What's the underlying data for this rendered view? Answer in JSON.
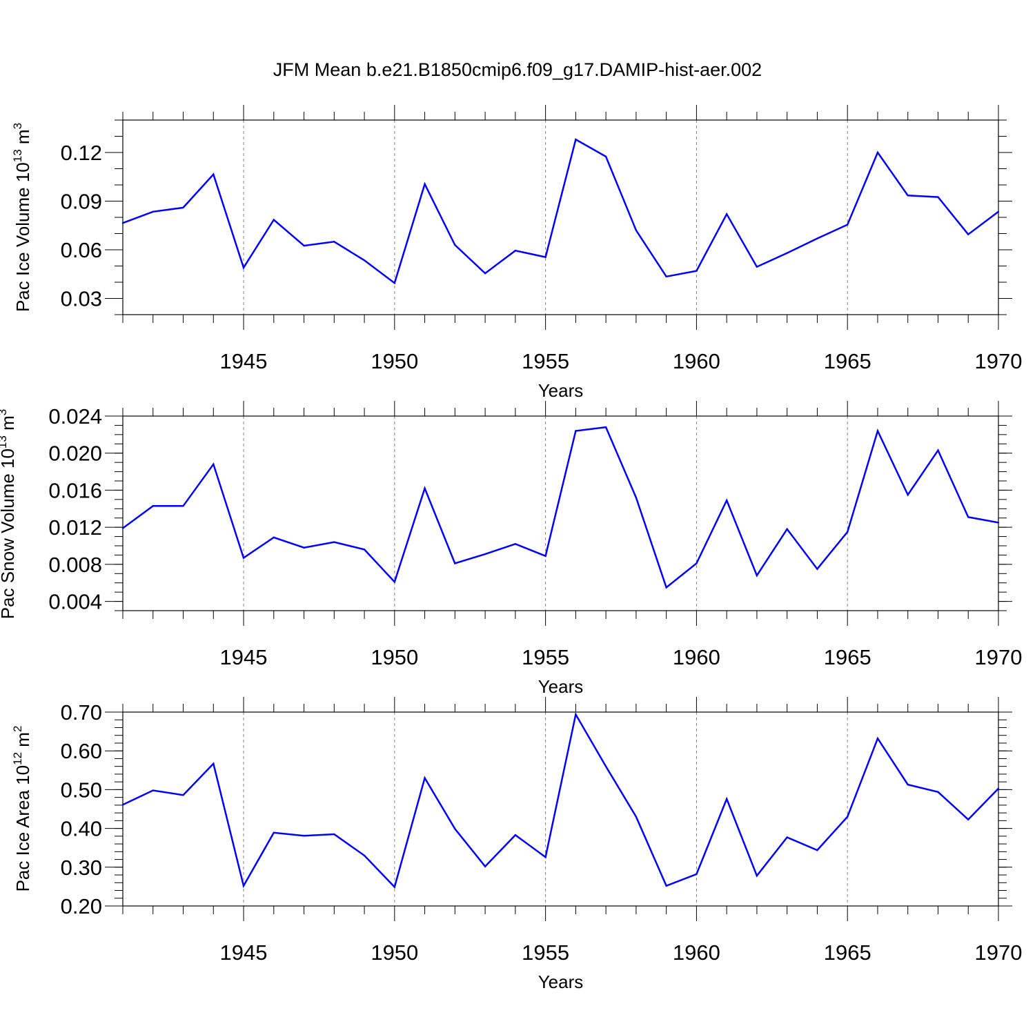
{
  "title": "JFM Mean b.e21.B1850cmip6.f09_g17.DAMIP-hist-aer.002",
  "colors": {
    "line": "#0000ff",
    "axis": "#000000",
    "grid": "#808080"
  },
  "chart_data": [
    {
      "type": "line",
      "xlabel": "Years",
      "ylabel": {
        "text": "Pac Ice Volume 10",
        "sup": "13",
        "unit": " m",
        "unit_sup": "3"
      },
      "xlim": [
        1941,
        1970
      ],
      "ylim": [
        0.02,
        0.14
      ],
      "xticks": [
        "1945",
        "1950",
        "1955",
        "1960",
        "1965",
        "1970"
      ],
      "yticks": [
        "0.03",
        "0.06",
        "0.09",
        "0.12"
      ],
      "x": [
        1941,
        1942,
        1943,
        1944,
        1945,
        1946,
        1947,
        1948,
        1949,
        1950,
        1951,
        1952,
        1953,
        1954,
        1955,
        1956,
        1957,
        1958,
        1959,
        1960,
        1961,
        1962,
        1963,
        1964,
        1965,
        1966,
        1967,
        1968,
        1969,
        1970
      ],
      "values": [
        0.0765,
        0.0835,
        0.086,
        0.1065,
        0.049,
        0.0785,
        0.0625,
        0.065,
        0.0535,
        0.0395,
        0.1005,
        0.063,
        0.0455,
        0.0595,
        0.0555,
        0.128,
        0.1175,
        0.072,
        0.0435,
        0.047,
        0.082,
        0.0495,
        0.058,
        0.067,
        0.0755,
        0.12,
        0.0935,
        0.0925,
        0.0695,
        0.0835
      ],
      "grid_x": [
        1945,
        1950,
        1955,
        1960,
        1965
      ]
    },
    {
      "type": "line",
      "xlabel": "Years",
      "ylabel": {
        "text": "Pac Snow Volume 10",
        "sup": "13",
        "unit": " m",
        "unit_sup": "3"
      },
      "xlim": [
        1941,
        1970
      ],
      "ylim": [
        0.003,
        0.024
      ],
      "xticks": [
        "1945",
        "1950",
        "1955",
        "1960",
        "1965",
        "1970"
      ],
      "yticks": [
        "0.004",
        "0.008",
        "0.012",
        "0.016",
        "0.020",
        "0.024"
      ],
      "x": [
        1941,
        1942,
        1943,
        1944,
        1945,
        1946,
        1947,
        1948,
        1949,
        1950,
        1951,
        1952,
        1953,
        1954,
        1955,
        1956,
        1957,
        1958,
        1959,
        1960,
        1961,
        1962,
        1963,
        1964,
        1965,
        1966,
        1967,
        1968,
        1969,
        1970
      ],
      "values": [
        0.0119,
        0.0143,
        0.0143,
        0.0188,
        0.0087,
        0.0109,
        0.0098,
        0.0104,
        0.0096,
        0.0061,
        0.0162,
        0.0081,
        0.0091,
        0.0102,
        0.0089,
        0.0224,
        0.0228,
        0.0152,
        0.0055,
        0.0081,
        0.0149,
        0.0068,
        0.0118,
        0.0075,
        0.0115,
        0.0224,
        0.0155,
        0.0203,
        0.0131,
        0.0125
      ],
      "grid_x": [
        1945,
        1950,
        1955,
        1960,
        1965
      ]
    },
    {
      "type": "line",
      "xlabel": "Years",
      "ylabel": {
        "text": "Pac Ice Area 10",
        "sup": "12",
        "unit": " m",
        "unit_sup": "2"
      },
      "xlim": [
        1941,
        1970
      ],
      "ylim": [
        0.2,
        0.7
      ],
      "xticks": [
        "1945",
        "1950",
        "1955",
        "1960",
        "1965",
        "1970"
      ],
      "yticks": [
        "0.20",
        "0.30",
        "0.40",
        "0.50",
        "0.60",
        "0.70"
      ],
      "x": [
        1941,
        1942,
        1943,
        1944,
        1945,
        1946,
        1947,
        1948,
        1949,
        1950,
        1951,
        1952,
        1953,
        1954,
        1955,
        1956,
        1957,
        1958,
        1959,
        1960,
        1961,
        1962,
        1963,
        1964,
        1965,
        1966,
        1967,
        1968,
        1969,
        1970
      ],
      "values": [
        0.461,
        0.498,
        0.486,
        0.567,
        0.252,
        0.389,
        0.381,
        0.385,
        0.33,
        0.249,
        0.53,
        0.399,
        0.302,
        0.383,
        0.326,
        0.694,
        0.56,
        0.43,
        0.252,
        0.282,
        0.476,
        0.278,
        0.377,
        0.344,
        0.43,
        0.632,
        0.513,
        0.494,
        0.423,
        0.503
      ],
      "grid_x": [
        1945,
        1950,
        1955,
        1960,
        1965
      ]
    }
  ]
}
